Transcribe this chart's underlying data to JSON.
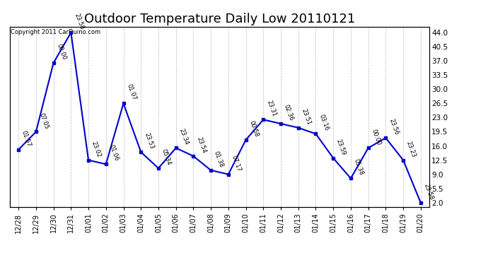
{
  "title": "Outdoor Temperature Daily Low 20110121",
  "copyright": "Copyright 2011 CarDuino.com",
  "x_labels": [
    "12/28",
    "12/29",
    "12/30",
    "12/31",
    "01/01",
    "01/02",
    "01/03",
    "01/04",
    "01/05",
    "01/06",
    "01/07",
    "01/08",
    "01/09",
    "01/10",
    "01/11",
    "01/12",
    "01/13",
    "01/14",
    "01/15",
    "01/16",
    "01/17",
    "01/18",
    "01/19",
    "01/20"
  ],
  "y_values": [
    15.1,
    19.5,
    36.5,
    44.0,
    12.5,
    11.5,
    26.5,
    14.5,
    10.5,
    15.5,
    13.5,
    10.0,
    9.0,
    17.5,
    22.5,
    21.5,
    20.5,
    19.0,
    13.0,
    8.0,
    15.5,
    18.0,
    12.5,
    2.0
  ],
  "point_labels": [
    "01:57",
    "07:05",
    "00:00",
    "23:58",
    "23:02",
    "01:06",
    "01:07",
    "23:53",
    "05:34",
    "23:34",
    "23:54",
    "01:38",
    "07:17",
    "00:58",
    "23:31",
    "02:36",
    "23:51",
    "03:16",
    "23:59",
    "05:38",
    "00:00",
    "23:56",
    "23:23",
    "23:58"
  ],
  "line_color": "#0000cc",
  "marker_color": "#0000cc",
  "background_color": "#ffffff",
  "grid_color": "#aaaaaa",
  "y_ticks": [
    2.0,
    5.5,
    9.0,
    12.5,
    16.0,
    19.5,
    23.0,
    26.5,
    30.0,
    33.5,
    37.0,
    40.5,
    44.0
  ],
  "ylim": [
    1.0,
    45.5
  ],
  "title_fontsize": 13,
  "label_fontsize": 7.5
}
